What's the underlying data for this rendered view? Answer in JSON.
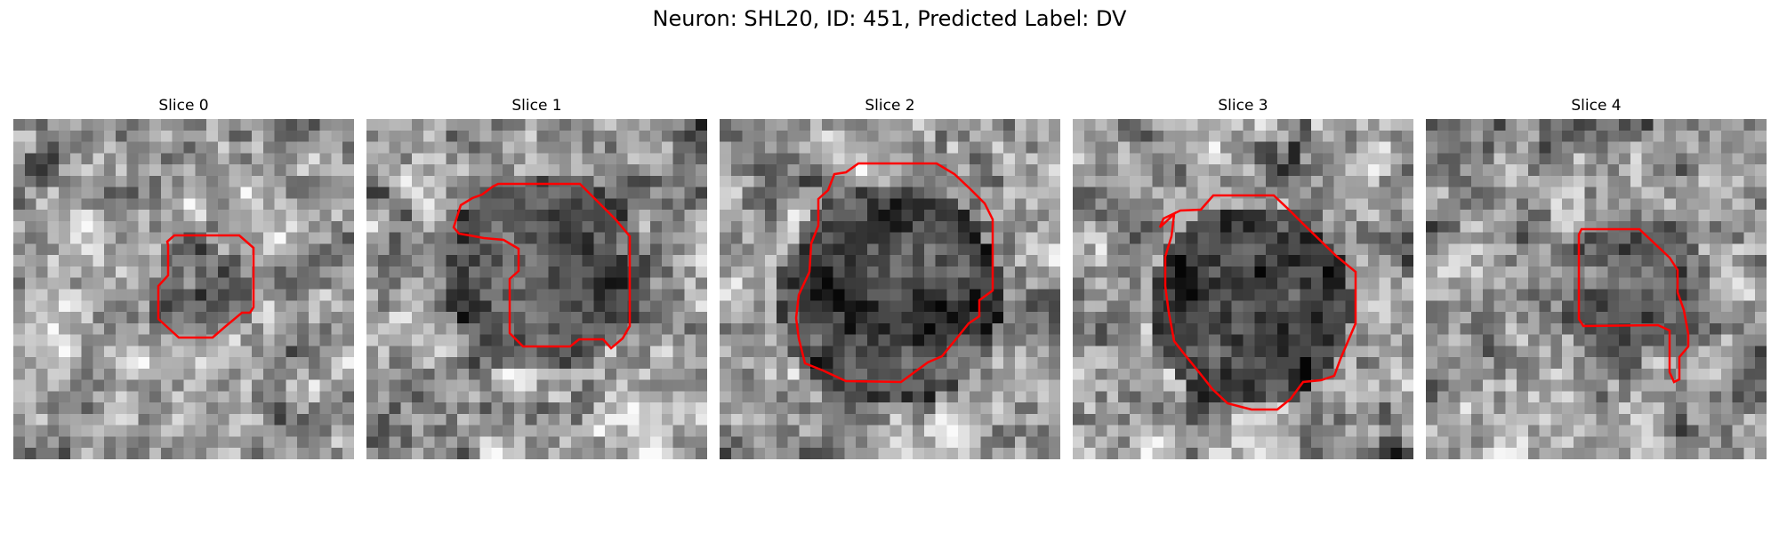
{
  "figure": {
    "title": "Neuron: SHL20, ID: 451, Predicted Label: DV"
  },
  "contour_color": "#ff0000",
  "slices": [
    {
      "title": "Slice 0",
      "seed": 11,
      "blob": [
        0.55,
        0.52,
        0.15,
        0.05
      ]
    },
    {
      "title": "Slice 1",
      "seed": 23,
      "blob": [
        0.52,
        0.45,
        0.3,
        0.1
      ]
    },
    {
      "title": "Slice 2",
      "seed": 37,
      "blob": [
        0.5,
        0.52,
        0.33,
        0.18
      ]
    },
    {
      "title": "Slice 3",
      "seed": 41,
      "blob": [
        0.52,
        0.55,
        0.3,
        0.22
      ]
    },
    {
      "title": "Slice 4",
      "seed": 53,
      "blob": [
        0.6,
        0.5,
        0.22,
        0.05
      ]
    }
  ]
}
